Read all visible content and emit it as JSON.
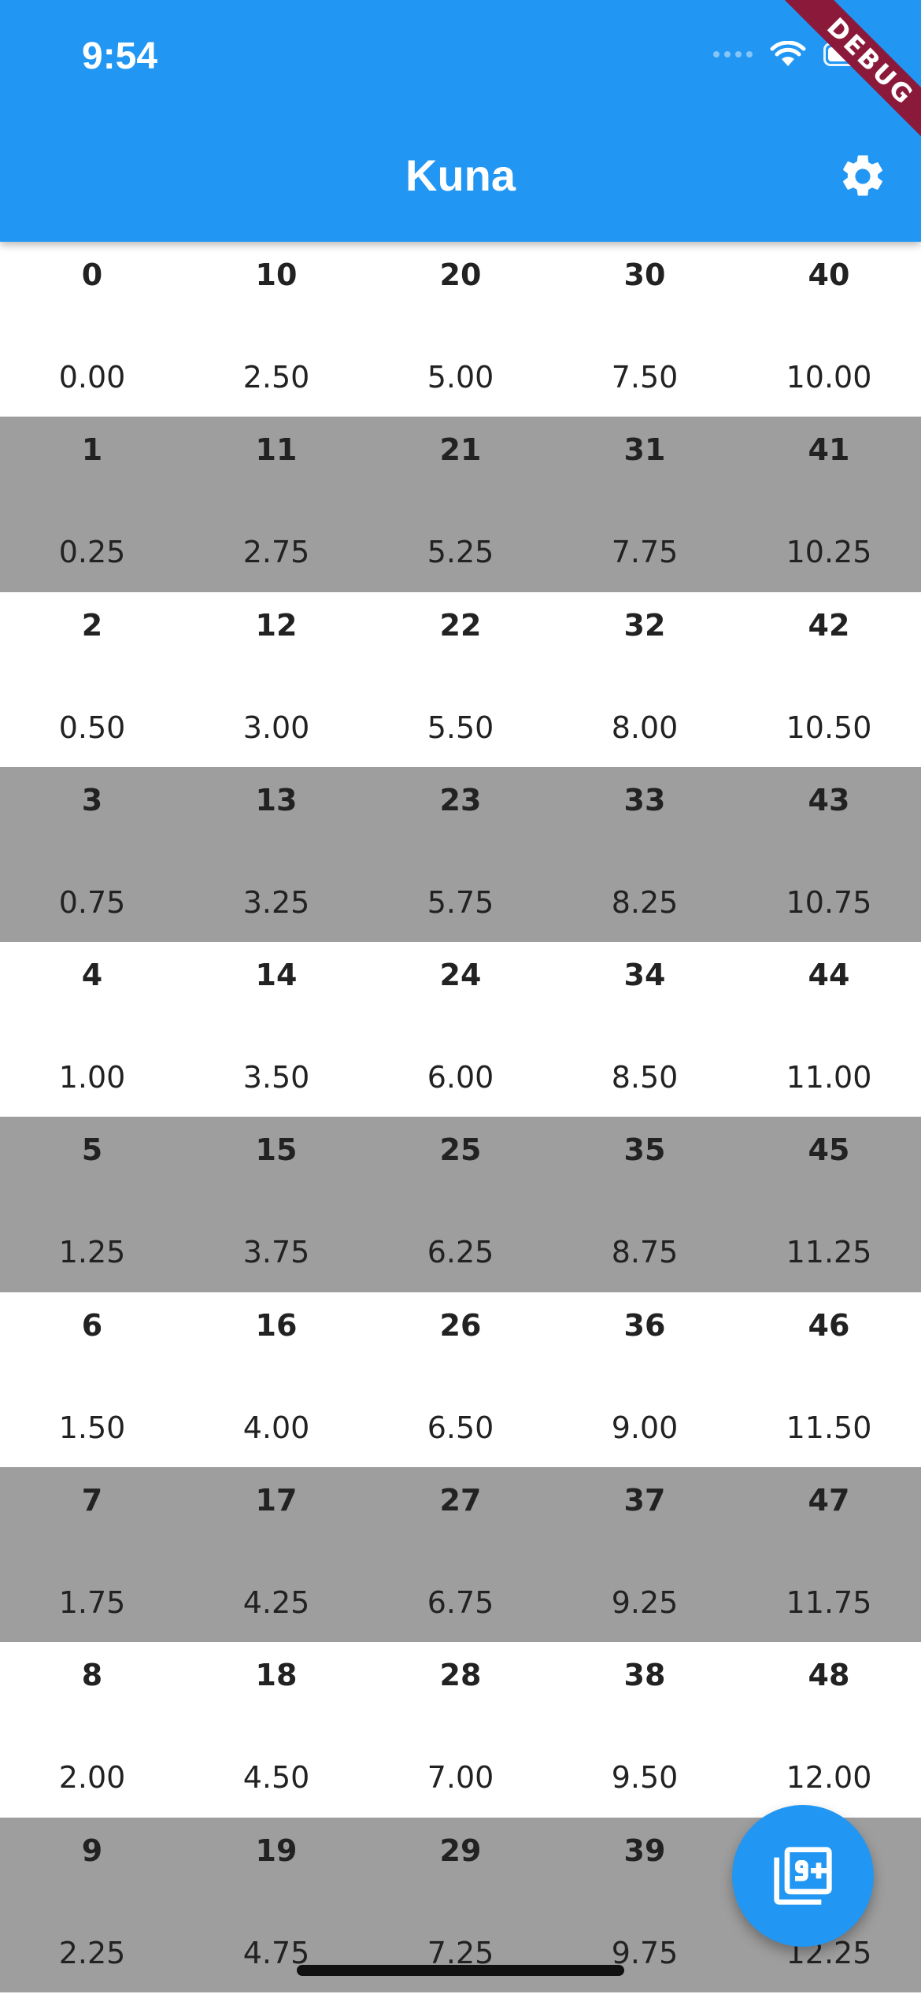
{
  "colors": {
    "primary": "#2196F3",
    "shaded_row": "#9E9E9E",
    "debug_banner": "#8B1A3A"
  },
  "status_bar": {
    "time": "9:54",
    "icons": [
      "signal-icon",
      "wifi-icon",
      "battery-icon"
    ]
  },
  "app_bar": {
    "title": "Kuna",
    "action_icon": "gear-icon"
  },
  "debug_banner": "DEBUG",
  "grid": {
    "rows": [
      [
        {
          "n": "0",
          "v": "0.00"
        },
        {
          "n": "10",
          "v": "2.50"
        },
        {
          "n": "20",
          "v": "5.00"
        },
        {
          "n": "30",
          "v": "7.50"
        },
        {
          "n": "40",
          "v": "10.00"
        }
      ],
      [
        {
          "n": "1",
          "v": "0.25"
        },
        {
          "n": "11",
          "v": "2.75"
        },
        {
          "n": "21",
          "v": "5.25"
        },
        {
          "n": "31",
          "v": "7.75"
        },
        {
          "n": "41",
          "v": "10.25"
        }
      ],
      [
        {
          "n": "2",
          "v": "0.50"
        },
        {
          "n": "12",
          "v": "3.00"
        },
        {
          "n": "22",
          "v": "5.50"
        },
        {
          "n": "32",
          "v": "8.00"
        },
        {
          "n": "42",
          "v": "10.50"
        }
      ],
      [
        {
          "n": "3",
          "v": "0.75"
        },
        {
          "n": "13",
          "v": "3.25"
        },
        {
          "n": "23",
          "v": "5.75"
        },
        {
          "n": "33",
          "v": "8.25"
        },
        {
          "n": "43",
          "v": "10.75"
        }
      ],
      [
        {
          "n": "4",
          "v": "1.00"
        },
        {
          "n": "14",
          "v": "3.50"
        },
        {
          "n": "24",
          "v": "6.00"
        },
        {
          "n": "34",
          "v": "8.50"
        },
        {
          "n": "44",
          "v": "11.00"
        }
      ],
      [
        {
          "n": "5",
          "v": "1.25"
        },
        {
          "n": "15",
          "v": "3.75"
        },
        {
          "n": "25",
          "v": "6.25"
        },
        {
          "n": "35",
          "v": "8.75"
        },
        {
          "n": "45",
          "v": "11.25"
        }
      ],
      [
        {
          "n": "6",
          "v": "1.50"
        },
        {
          "n": "16",
          "v": "4.00"
        },
        {
          "n": "26",
          "v": "6.50"
        },
        {
          "n": "36",
          "v": "9.00"
        },
        {
          "n": "46",
          "v": "11.50"
        }
      ],
      [
        {
          "n": "7",
          "v": "1.75"
        },
        {
          "n": "17",
          "v": "4.25"
        },
        {
          "n": "27",
          "v": "6.75"
        },
        {
          "n": "37",
          "v": "9.25"
        },
        {
          "n": "47",
          "v": "11.75"
        }
      ],
      [
        {
          "n": "8",
          "v": "2.00"
        },
        {
          "n": "18",
          "v": "4.50"
        },
        {
          "n": "28",
          "v": "7.00"
        },
        {
          "n": "38",
          "v": "9.50"
        },
        {
          "n": "48",
          "v": "12.00"
        }
      ],
      [
        {
          "n": "9",
          "v": "2.25"
        },
        {
          "n": "19",
          "v": "4.75"
        },
        {
          "n": "29",
          "v": "7.25"
        },
        {
          "n": "39",
          "v": "9.75"
        },
        {
          "n": "",
          "v": "12.25"
        }
      ]
    ]
  },
  "fab": {
    "icon": "filter-9-plus-icon"
  }
}
